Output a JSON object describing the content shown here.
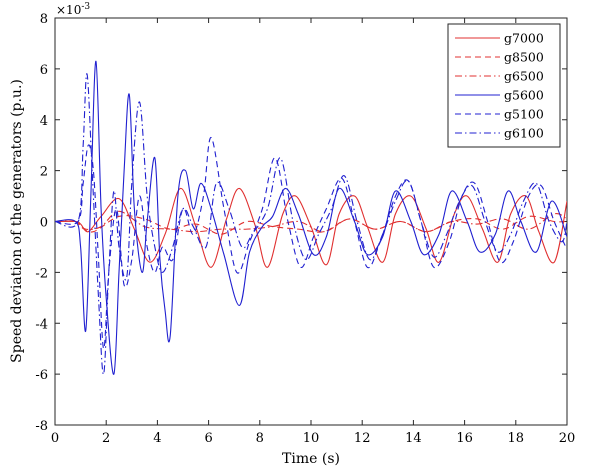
{
  "chart_data": {
    "type": "line",
    "title": "",
    "xlabel": "Time (s)",
    "ylabel": "Speed deviation of the generators (p.u.)",
    "y_multiplier_label": "×10",
    "y_multiplier_exponent": "-3",
    "xlim": [
      0,
      20
    ],
    "ylim": [
      -8,
      8
    ],
    "xticks": [
      0,
      2,
      4,
      6,
      8,
      10,
      12,
      14,
      16,
      18,
      20
    ],
    "yticks": [
      -8,
      -6,
      -4,
      -2,
      0,
      2,
      4,
      6,
      8
    ],
    "grid": false,
    "legend_position": "top-right",
    "series": [
      {
        "name": "g7000",
        "color": "#e03030",
        "dash": "solid",
        "x": [
          0,
          0.8,
          1.0,
          1.3,
          1.8,
          2.5,
          3.1,
          3.7,
          4.3,
          4.9,
          5.5,
          6.1,
          6.7,
          7.2,
          7.8,
          8.3,
          8.9,
          9.4,
          10.0,
          10.6,
          11.1,
          11.7,
          12.2,
          12.8,
          13.3,
          13.9,
          14.5,
          15.0,
          15.6,
          16.1,
          16.7,
          17.3,
          17.8,
          18.4,
          18.9,
          19.5,
          20.0
        ],
        "y": [
          0.0,
          0.0,
          -0.1,
          -0.4,
          0.2,
          0.9,
          -0.3,
          -1.6,
          -0.5,
          1.3,
          -0.2,
          -1.8,
          0.1,
          1.3,
          -0.1,
          -1.8,
          0.3,
          1.0,
          -0.2,
          -1.7,
          0.3,
          1.0,
          -0.2,
          -1.6,
          0.3,
          1.0,
          -0.3,
          -1.6,
          0.3,
          1.0,
          -0.3,
          -1.6,
          0.3,
          1.0,
          -0.4,
          -1.6,
          0.8
        ]
      },
      {
        "name": "g8500",
        "color": "#e03030",
        "dash": "dashed",
        "x": [
          0,
          0.8,
          1.0,
          1.5,
          2.5,
          3.5,
          4.5,
          5.5,
          6.5,
          7.5,
          8.5,
          9.5,
          10.5,
          11.5,
          12.5,
          13.5,
          14.5,
          15.5,
          16.5,
          17.5,
          18.5,
          19.5,
          20.0
        ],
        "y": [
          0.0,
          0.0,
          -0.2,
          -0.4,
          0.2,
          0.1,
          -0.3,
          -0.1,
          -0.5,
          0.0,
          -0.2,
          -0.3,
          -0.4,
          0.1,
          -0.3,
          0.0,
          -0.4,
          0.0,
          0.1,
          -0.3,
          0.2,
          0.0,
          0.0
        ]
      },
      {
        "name": "g6500",
        "color": "#e03030",
        "dash": "dashdot",
        "x": [
          0,
          0.8,
          1.2,
          1.8,
          2.5,
          3.5,
          4.5,
          5.5,
          6.5,
          7.5,
          8.5,
          9.5,
          10.5,
          11.5,
          12.5,
          13.5,
          14.5,
          15.5,
          16.5,
          17.5,
          18.5,
          19.5,
          20.0
        ],
        "y": [
          0.0,
          0.0,
          -0.3,
          -0.2,
          0.4,
          -0.2,
          -0.3,
          -0.4,
          -0.3,
          -0.3,
          -0.2,
          0.0,
          -0.4,
          0.1,
          -0.3,
          0.0,
          -0.4,
          0.0,
          -0.1,
          0.1,
          -0.3,
          0.3,
          0.1
        ]
      },
      {
        "name": "g5600",
        "color": "#2020d0",
        "dash": "solid",
        "x": [
          0,
          0.8,
          1.0,
          1.2,
          1.4,
          1.6,
          1.8,
          2.0,
          2.3,
          2.5,
          2.7,
          2.9,
          3.1,
          3.4,
          3.6,
          3.9,
          4.1,
          4.3,
          4.5,
          4.8,
          5.1,
          5.4,
          5.7,
          6.1,
          6.6,
          7.2,
          7.6,
          8.1,
          8.5,
          9.0,
          9.5,
          10.1,
          10.6,
          11.1,
          11.7,
          12.2,
          12.8,
          13.3,
          13.9,
          14.4,
          15.0,
          15.5,
          16.1,
          16.6,
          17.2,
          17.7,
          18.2,
          18.8,
          19.4,
          20.0
        ],
        "y": [
          0.0,
          0.0,
          -1.0,
          -4.3,
          1.0,
          6.3,
          0.5,
          -3.0,
          -6.0,
          -2.0,
          2.0,
          5.0,
          0.5,
          -2.0,
          0.0,
          2.5,
          -1.5,
          -3.5,
          -4.5,
          1.0,
          2.0,
          0.5,
          1.5,
          0.5,
          -1.3,
          -3.3,
          -1.2,
          -0.2,
          0.2,
          1.3,
          0.3,
          -1.3,
          -0.6,
          1.3,
          0.0,
          -1.3,
          -0.6,
          1.2,
          0.0,
          -1.3,
          -0.5,
          1.2,
          0.0,
          -1.2,
          -0.5,
          1.2,
          0.0,
          -1.2,
          0.8,
          -0.6
        ]
      },
      {
        "name": "g5100",
        "color": "#2020d0",
        "dash": "dashed",
        "x": [
          0,
          0.9,
          1.1,
          1.3,
          1.5,
          1.7,
          1.9,
          2.1,
          2.4,
          2.7,
          3.0,
          3.3,
          3.6,
          3.9,
          4.2,
          4.6,
          5.0,
          5.4,
          5.8,
          6.1,
          6.6,
          7.1,
          7.6,
          8.1,
          8.6,
          9.1,
          9.6,
          10.1,
          10.6,
          11.2,
          11.7,
          12.2,
          12.7,
          13.3,
          13.8,
          14.3,
          14.8,
          15.4,
          15.9,
          16.4,
          16.9,
          17.4,
          17.9,
          18.5,
          19.0,
          19.5,
          20.0
        ],
        "y": [
          0.0,
          0.0,
          1.5,
          3.0,
          2.0,
          -1.5,
          -5.0,
          -2.0,
          0.5,
          -2.5,
          -1.5,
          1.0,
          -1.0,
          -2.0,
          -1.0,
          -1.5,
          0.5,
          -0.5,
          1.0,
          3.3,
          0.5,
          -2.0,
          -0.8,
          0.5,
          2.5,
          0.0,
          -1.8,
          -0.6,
          0.5,
          1.7,
          0.0,
          -1.8,
          -0.8,
          1.0,
          1.6,
          0.0,
          -1.8,
          -0.8,
          1.0,
          1.5,
          0.0,
          -1.6,
          -0.8,
          1.0,
          1.4,
          0.0,
          -1.1
        ]
      },
      {
        "name": "g6100",
        "color": "#2020d0",
        "dash": "dashdot",
        "x": [
          0,
          0.9,
          1.1,
          1.25,
          1.45,
          1.7,
          1.9,
          2.1,
          2.3,
          2.5,
          2.8,
          3.0,
          3.3,
          3.6,
          3.9,
          4.2,
          4.6,
          5.0,
          5.4,
          5.9,
          6.3,
          6.8,
          7.3,
          7.7,
          8.3,
          8.8,
          9.3,
          9.8,
          10.3,
          10.8,
          11.3,
          11.8,
          12.3,
          12.8,
          13.3,
          13.8,
          14.3,
          14.8,
          15.3,
          15.8,
          16.3,
          16.8,
          17.3,
          17.8,
          18.3,
          18.8,
          19.3,
          19.8,
          20.0
        ],
        "y": [
          0.0,
          0.0,
          3.0,
          5.8,
          2.0,
          -3.0,
          -6.0,
          -2.0,
          1.2,
          -1.0,
          -2.2,
          1.5,
          4.7,
          1.0,
          -1.0,
          -2.0,
          -1.0,
          0.5,
          -0.2,
          -1.0,
          1.5,
          0.5,
          -1.0,
          -0.5,
          0.5,
          2.5,
          0.0,
          -1.5,
          -0.5,
          0.5,
          1.8,
          0.0,
          -1.5,
          -0.5,
          0.8,
          1.6,
          0.0,
          -1.4,
          -0.5,
          0.8,
          1.4,
          0.0,
          -1.2,
          -0.5,
          0.8,
          1.5,
          0.0,
          -0.8,
          0.0
        ]
      }
    ]
  }
}
